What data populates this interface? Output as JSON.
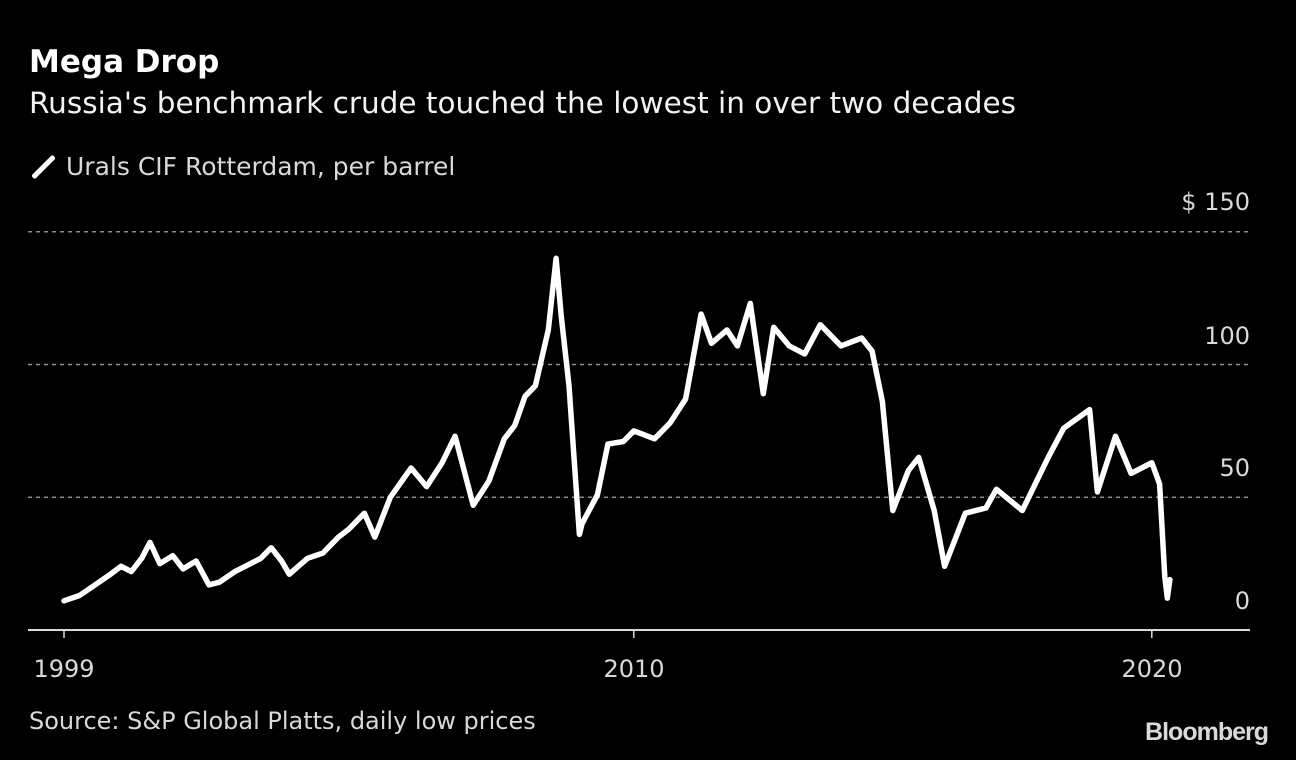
{
  "header": {
    "title": "Mega Drop",
    "subtitle": "Russia's benchmark crude touched the lowest in over two decades"
  },
  "legend": {
    "label": "Urals CIF Rotterdam, per barrel",
    "icon": "white-slash-line-swatch"
  },
  "footer": {
    "source": "Source: S&P Global Platts, daily low prices",
    "logo": "Bloomberg"
  },
  "colors": {
    "background": "#000000",
    "line": "#ffffff",
    "grid": "#8c8c8c",
    "text": "#d9d9d9"
  },
  "chart_data": {
    "type": "line",
    "title": "Mega Drop",
    "subtitle": "Russia's benchmark crude touched the lowest in over two decades",
    "ylim": [
      0,
      150
    ],
    "y_ticks": [
      {
        "value": 150,
        "label": "$ 150"
      },
      {
        "value": 100,
        "label": "100"
      },
      {
        "value": 50,
        "label": "50"
      },
      {
        "value": 0,
        "label": "0"
      }
    ],
    "x_ticks": [
      {
        "value": 1999,
        "label": "1999"
      },
      {
        "value": 2010,
        "label": "2010"
      },
      {
        "value": 2020,
        "label": "2020"
      }
    ],
    "grid": "horizontal dotted",
    "legend_position": "top-left",
    "series": [
      {
        "name": "Urals CIF Rotterdam, per barrel",
        "x": [
          1999.0,
          1999.3,
          1999.6,
          1999.9,
          2000.1,
          2000.3,
          2000.5,
          2000.66,
          2000.85,
          2001.1,
          2001.3,
          2001.55,
          2001.8,
          2002.0,
          2002.3,
          2002.5,
          2002.8,
          2003.0,
          2003.2,
          2003.35,
          2003.7,
          2004.0,
          2004.3,
          2004.5,
          2004.8,
          2005.0,
          2005.3,
          2005.7,
          2006.0,
          2006.3,
          2006.55,
          2006.9,
          2007.2,
          2007.5,
          2007.7,
          2007.9,
          2008.1,
          2008.35,
          2008.5,
          2008.6,
          2008.75,
          2008.85,
          2008.95,
          2009.0,
          2009.3,
          2009.5,
          2009.8,
          2010.0,
          2010.4,
          2010.7,
          2011.0,
          2011.3,
          2011.5,
          2011.8,
          2012.0,
          2012.25,
          2012.5,
          2012.7,
          2013.0,
          2013.3,
          2013.6,
          2014.0,
          2014.4,
          2014.6,
          2014.8,
          2015.0,
          2015.3,
          2015.5,
          2015.8,
          2016.0,
          2016.4,
          2016.8,
          2017.0,
          2017.5,
          2018.0,
          2018.3,
          2018.8,
          2018.95,
          2019.3,
          2019.6,
          2020.0,
          2020.15,
          2020.25,
          2020.3,
          2020.35
        ],
        "y": [
          11,
          13,
          17,
          21,
          24,
          22,
          27,
          33,
          25,
          28,
          23,
          26,
          17,
          18,
          22,
          24,
          27,
          31,
          26,
          21,
          27,
          29,
          35,
          38,
          44,
          35,
          50,
          61,
          54,
          63,
          73,
          47,
          56,
          72,
          77,
          88,
          92,
          113,
          140,
          118,
          92,
          64,
          36,
          40,
          51,
          70,
          71,
          75,
          72,
          78,
          87,
          119,
          108,
          113,
          107,
          123,
          89,
          114,
          107,
          104,
          115,
          107,
          110,
          105,
          86,
          45,
          60,
          65,
          45,
          24,
          44,
          46,
          53,
          45,
          65,
          76,
          83,
          52,
          73,
          59,
          63,
          55,
          20,
          12,
          19
        ]
      }
    ]
  }
}
